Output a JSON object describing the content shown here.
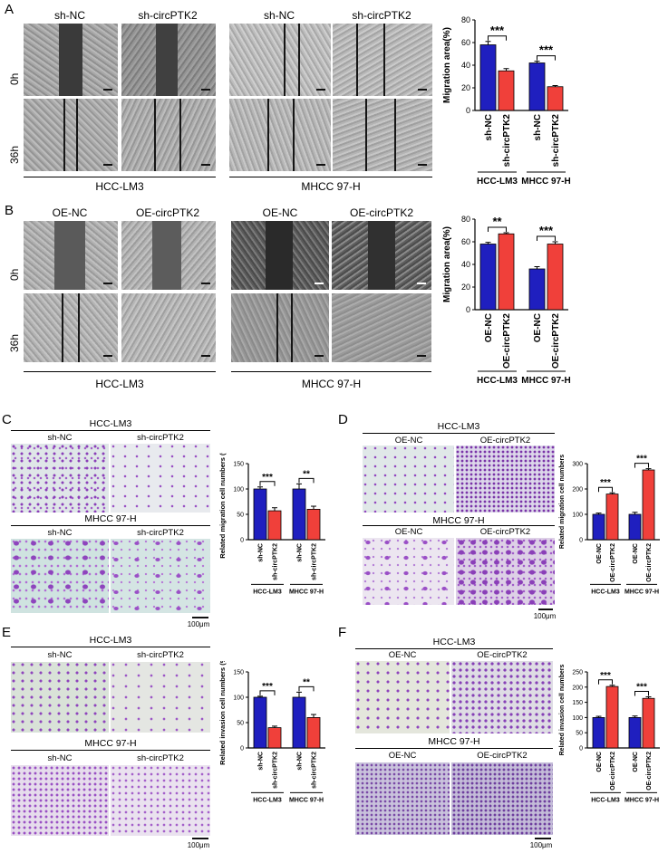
{
  "panels": {
    "A": {
      "label": "A",
      "col_labels": [
        "sh-NC",
        "sh-circPTK2",
        "sh-NC",
        "sh-circPTK2"
      ],
      "row_labels": [
        "0h",
        "36h"
      ],
      "group_labels": [
        "HCC-LM3",
        "MHCC 97-H"
      ]
    },
    "B": {
      "label": "B",
      "col_labels": [
        "OE-NC",
        "OE-circPTK2",
        "OE-NC",
        "OE-circPTK2"
      ],
      "row_labels": [
        "0h",
        "36h"
      ],
      "group_labels": [
        "HCC-LM3",
        "MHCC 97-H"
      ]
    },
    "C": {
      "label": "C",
      "top_group": "HCC-LM3",
      "bottom_group": "MHCC 97-H",
      "col_labels_top": [
        "sh-NC",
        "sh-circPTK2"
      ],
      "col_labels_bottom": [
        "sh-NC",
        "sh-circPTK2"
      ],
      "scale_bar": "100μm"
    },
    "D": {
      "label": "D",
      "top_group": "HCC-LM3",
      "bottom_group": "MHCC 97-H",
      "col_labels_top": [
        "OE-NC",
        "OE-circPTK2"
      ],
      "col_labels_bottom": [
        "OE-NC",
        "OE-circPTK2"
      ],
      "scale_bar": "100μm"
    },
    "E": {
      "label": "E",
      "top_group": "HCC-LM3",
      "bottom_group": "MHCC 97-H",
      "col_labels_top": [
        "sh-NC",
        "sh-circPTK2"
      ],
      "col_labels_bottom": [
        "sh-NC",
        "sh-circPTK2"
      ],
      "scale_bar": "100μm"
    },
    "F": {
      "label": "F",
      "top_group": "HCC-LM3",
      "bottom_group": "MHCC 97-H",
      "col_labels_top": [
        "OE-NC",
        "OE-circPTK2"
      ],
      "col_labels_bottom": [
        "OE-NC",
        "OE-circPTK2"
      ],
      "scale_bar": "100μm"
    }
  },
  "colors": {
    "control": "#1f1fbf",
    "treatment": "#f0403a",
    "well": "#d2d2d2",
    "stain": "#8a3fb8"
  },
  "chart_data": [
    {
      "id": "A",
      "type": "bar",
      "ylabel": "Migration area(%)",
      "ylim": [
        0,
        80
      ],
      "yticks": [
        "0",
        "20",
        "40",
        "60",
        "80"
      ],
      "categories": [
        "sh-NC",
        "sh-circPTK2",
        "sh-NC",
        "sh-circPTK2"
      ],
      "values": [
        58,
        35,
        42,
        21
      ],
      "errors": [
        3,
        2,
        1.5,
        1
      ],
      "groups": [
        "HCC-LM3",
        "MHCC 97-H"
      ],
      "significance": [
        "***",
        "***"
      ]
    },
    {
      "id": "B",
      "type": "bar",
      "ylabel": "Migration area(%)",
      "ylim": [
        0,
        80
      ],
      "yticks": [
        "0",
        "20",
        "40",
        "60",
        "80"
      ],
      "categories": [
        "OE-NC",
        "OE-circPTK2",
        "OE-NC",
        "OE-circPTK2"
      ],
      "values": [
        58,
        67,
        36,
        58
      ],
      "errors": [
        1.5,
        1,
        2,
        2
      ],
      "groups": [
        "HCC-LM3",
        "MHCC 97-H"
      ],
      "significance": [
        "**",
        "***"
      ]
    },
    {
      "id": "C",
      "type": "bar",
      "ylabel": "Related migration cell numbers (%)",
      "ylim": [
        0,
        150
      ],
      "yticks": [
        "0",
        "50",
        "100",
        "150"
      ],
      "categories": [
        "sh-NC",
        "sh-circPTK2",
        "sh-NC",
        "sh-circPTK2"
      ],
      "values": [
        100,
        57,
        100,
        60
      ],
      "errors": [
        4,
        6,
        10,
        6
      ],
      "groups": [
        "HCC-LM3",
        "MHCC 97-H"
      ],
      "significance": [
        "***",
        "**"
      ]
    },
    {
      "id": "D",
      "type": "bar",
      "ylabel": "Related migration cell numbers",
      "ylim": [
        0,
        300
      ],
      "yticks": [
        "0",
        "100",
        "200",
        "300"
      ],
      "categories": [
        "OE-NC",
        "OE-circPTK2",
        "OE-NC",
        "OE-circPTK2"
      ],
      "values": [
        100,
        180,
        100,
        275
      ],
      "errors": [
        5,
        5,
        8,
        5
      ],
      "groups": [
        "HCC-LM3",
        "MHCC 97-H"
      ],
      "significance": [
        "***",
        "***"
      ]
    },
    {
      "id": "E",
      "type": "bar",
      "ylabel": "Related invasion cell numbers (%)",
      "ylim": [
        0,
        150
      ],
      "yticks": [
        "0",
        "50",
        "100",
        "150"
      ],
      "categories": [
        "sh-NC",
        "sh-circPTK2",
        "sh-NC",
        "sh-circPTK2"
      ],
      "values": [
        100,
        40,
        100,
        60
      ],
      "errors": [
        2,
        3,
        10,
        6
      ],
      "groups": [
        "HCC-LM3",
        "MHCC 97-H"
      ],
      "significance": [
        "***",
        "**"
      ]
    },
    {
      "id": "F",
      "type": "bar",
      "ylabel": "Related invasion cell numbers",
      "ylim": [
        0,
        250
      ],
      "yticks": [
        "0",
        "50",
        "100",
        "150",
        "200",
        "250"
      ],
      "categories": [
        "OE-NC",
        "OE-circPTK2",
        "OE-NC",
        "OE-circPTK2"
      ],
      "values": [
        100,
        202,
        100,
        163
      ],
      "errors": [
        4,
        4,
        5,
        5
      ],
      "groups": [
        "HCC-LM3",
        "MHCC 97-H"
      ],
      "significance": [
        "***",
        "***"
      ]
    }
  ]
}
